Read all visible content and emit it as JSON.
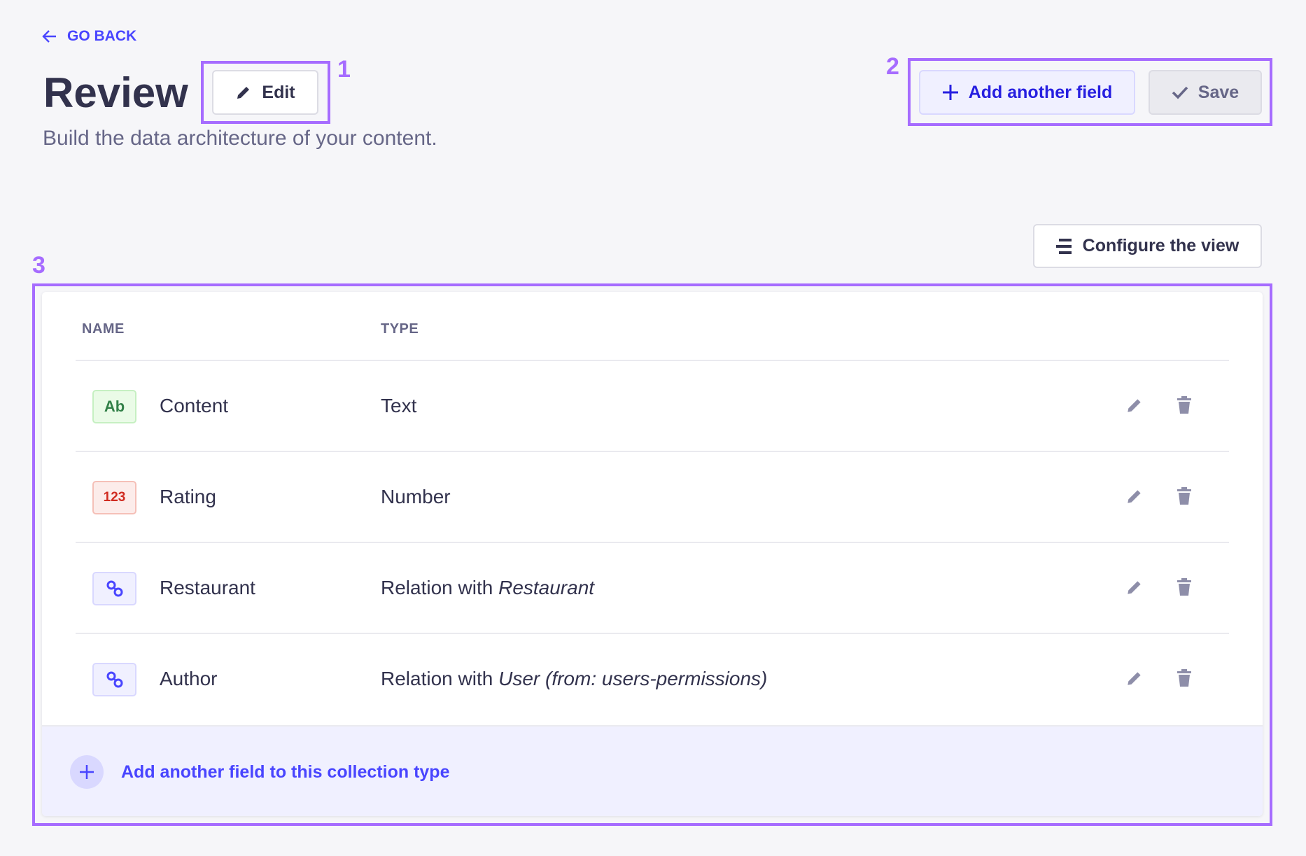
{
  "header": {
    "go_back": "GO BACK",
    "title": "Review",
    "edit_label": "Edit",
    "subtitle": "Build the data architecture of your content.",
    "add_field_label": "Add another field",
    "save_label": "Save",
    "configure_label": "Configure the view"
  },
  "annotations": [
    "1",
    "2",
    "3"
  ],
  "table": {
    "columns": [
      "NAME",
      "TYPE"
    ],
    "rows": [
      {
        "badge": "Ab",
        "badge_kind": "text",
        "name": "Content",
        "type": "Text",
        "type_target": ""
      },
      {
        "badge": "123",
        "badge_kind": "number",
        "name": "Rating",
        "type": "Number",
        "type_target": ""
      },
      {
        "badge": "link-icon",
        "badge_kind": "relation",
        "name": "Restaurant",
        "type": "Relation with ",
        "type_target": "Restaurant"
      },
      {
        "badge": "link-icon",
        "badge_kind": "relation",
        "name": "Author",
        "type": "Relation with ",
        "type_target": "User (from: users-permissions)"
      }
    ],
    "footer_label": "Add another field to this collection type"
  },
  "colors": {
    "primary": "#4945ff",
    "highlight": "#a66cff",
    "text_badge": "#328048",
    "number_badge": "#d02b20"
  }
}
